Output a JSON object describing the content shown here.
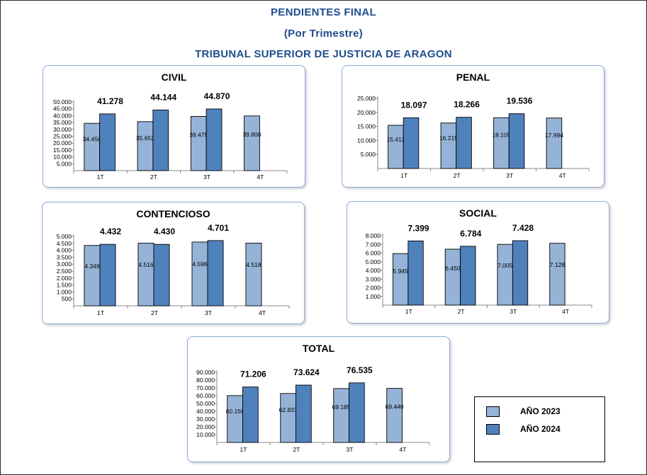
{
  "header": {
    "title": "PENDIENTES FINAL",
    "subtitle": "(Por Trimestre)",
    "org": "TRIBUNAL SUPERIOR DE JUSTICIA DE ARAGON"
  },
  "colors": {
    "y2023": "#95b3d7",
    "y2024": "#4f81bd"
  },
  "legend": {
    "y2023": "AÑO 2023",
    "y2024": "AÑO 2024"
  },
  "chart_data": [
    {
      "type": "bar",
      "title": "CIVIL",
      "categories": [
        "1T",
        "2T",
        "3T",
        "4T"
      ],
      "series": [
        {
          "name": "AÑO 2023",
          "values": [
            34450,
            35652,
            39475,
            39800
          ],
          "labels": [
            "34.450",
            "35.652",
            "39.475",
            "39.800"
          ]
        },
        {
          "name": "AÑO 2024",
          "values": [
            41278,
            44144,
            44870,
            null
          ],
          "labels": [
            "41.278",
            "44.144",
            "44.870",
            ""
          ]
        }
      ],
      "ylim": [
        0,
        50000
      ],
      "yticks": [
        "50.000",
        "45.000",
        "40.000",
        "35.000",
        "30.000",
        "25.000",
        "20.000",
        "15.000",
        "10.000",
        "5.000"
      ]
    },
    {
      "type": "bar",
      "title": "PENAL",
      "categories": [
        "1T",
        "2T",
        "3T",
        "4T"
      ],
      "series": [
        {
          "name": "AÑO 2023",
          "values": [
            15412,
            16219,
            18109,
            17994
          ],
          "labels": [
            "15.412",
            "16.219",
            "18.109",
            "17.994"
          ]
        },
        {
          "name": "AÑO 2024",
          "values": [
            18097,
            18266,
            19536,
            null
          ],
          "labels": [
            "18.097",
            "18.266",
            "19.536",
            ""
          ]
        }
      ],
      "ylim": [
        0,
        25000
      ],
      "yticks": [
        "25.000",
        "20.000",
        "15.000",
        "10.000",
        "5.000"
      ]
    },
    {
      "type": "bar",
      "title": "CONTENCIOSO",
      "categories": [
        "1T",
        "2T",
        "3T",
        "4T"
      ],
      "series": [
        {
          "name": "AÑO 2023",
          "values": [
            4349,
            4516,
            4596,
            4518
          ],
          "labels": [
            "4.349",
            "4.516",
            "4.596",
            "4.518"
          ]
        },
        {
          "name": "AÑO 2024",
          "values": [
            4432,
            4430,
            4701,
            null
          ],
          "labels": [
            "4.432",
            "4.430",
            "4.701",
            ""
          ]
        }
      ],
      "ylim": [
        0,
        5000
      ],
      "yticks": [
        "5.000",
        "4.500",
        "4.000",
        "3.500",
        "3.000",
        "2.500",
        "2.000",
        "1.500",
        "1.000",
        "500"
      ]
    },
    {
      "type": "bar",
      "title": "SOCIAL",
      "categories": [
        "1T",
        "2T",
        "3T",
        "4T"
      ],
      "series": [
        {
          "name": "AÑO 2023",
          "values": [
            5945,
            6450,
            7005,
            7128
          ],
          "labels": [
            "5.945",
            "6.450",
            "7.005",
            "7.128"
          ]
        },
        {
          "name": "AÑO 2024",
          "values": [
            7399,
            6784,
            7428,
            null
          ],
          "labels": [
            "7.399",
            "6.784",
            "7.428",
            ""
          ]
        }
      ],
      "ylim": [
        0,
        8000
      ],
      "yticks": [
        "8.000",
        "7.000",
        "6.000",
        "5.000",
        "4.000",
        "3.000",
        "2.000",
        "1.000"
      ]
    },
    {
      "type": "bar",
      "title": "TOTAL",
      "categories": [
        "1T",
        "2T",
        "3T",
        "4T"
      ],
      "series": [
        {
          "name": "AÑO 2023",
          "values": [
            60156,
            62837,
            69185,
            69440
          ],
          "labels": [
            "60.156",
            "62.837",
            "69.185",
            "69.440"
          ]
        },
        {
          "name": "AÑO 2024",
          "values": [
            71206,
            73624,
            76535,
            null
          ],
          "labels": [
            "71.206",
            "73.624",
            "76.535",
            ""
          ]
        }
      ],
      "ylim": [
        0,
        90000
      ],
      "yticks": [
        "90.000",
        "80.000",
        "70.000",
        "60.000",
        "50.000",
        "40.000",
        "30.000",
        "20.000",
        "10.000"
      ]
    }
  ]
}
